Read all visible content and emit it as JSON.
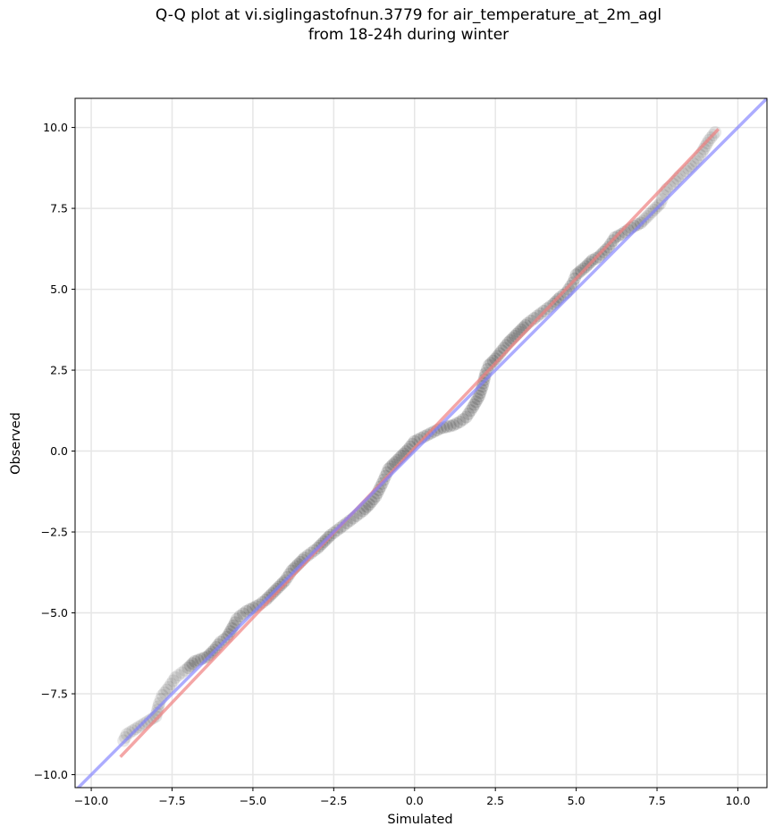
{
  "chart_data": {
    "type": "scatter",
    "title_line1": "Q-Q plot at vi.siglingastofnun.3779 for air_temperature_at_2m_agl",
    "title_line2": "from 18-24h during winter",
    "xlabel": "Simulated",
    "ylabel": "Observed",
    "xlim": [
      -10.5,
      10.9
    ],
    "ylim": [
      -10.4,
      10.9
    ],
    "xticks": [
      -10.0,
      -7.5,
      -5.0,
      -2.5,
      0.0,
      2.5,
      5.0,
      7.5,
      10.0
    ],
    "yticks": [
      -10.0,
      -7.5,
      -5.0,
      -2.5,
      0.0,
      2.5,
      5.0,
      7.5,
      10.0
    ],
    "xtick_labels": [
      "−10.0",
      "−7.5",
      "−5.0",
      "−2.5",
      "0.0",
      "2.5",
      "5.0",
      "7.5",
      "10.0"
    ],
    "ytick_labels": [
      "−10.0",
      "−7.5",
      "−5.0",
      "−2.5",
      "0.0",
      "2.5",
      "5.0",
      "7.5",
      "10.0"
    ],
    "grid": true,
    "series": [
      {
        "kind": "quantiles",
        "color": "#000000",
        "points": [
          [
            -9.0,
            -8.95
          ],
          [
            -8.9,
            -8.75
          ],
          [
            -8.0,
            -8.2
          ],
          [
            -7.9,
            -7.8
          ],
          [
            -7.8,
            -7.55
          ],
          [
            -7.6,
            -7.3
          ],
          [
            -7.4,
            -7.0
          ],
          [
            -7.2,
            -6.85
          ],
          [
            -7.0,
            -6.7
          ],
          [
            -6.8,
            -6.5
          ],
          [
            -6.4,
            -6.35
          ],
          [
            -6.2,
            -6.15
          ],
          [
            -6.0,
            -5.9
          ],
          [
            -5.8,
            -5.75
          ],
          [
            -5.6,
            -5.4
          ],
          [
            -5.5,
            -5.2
          ],
          [
            -5.4,
            -5.1
          ],
          [
            -5.2,
            -4.95
          ],
          [
            -5.0,
            -4.85
          ],
          [
            -4.8,
            -4.75
          ],
          [
            -4.6,
            -4.6
          ],
          [
            -4.4,
            -4.4
          ],
          [
            -4.2,
            -4.2
          ],
          [
            -4.0,
            -4.0
          ],
          [
            -3.8,
            -3.7
          ],
          [
            -3.6,
            -3.5
          ],
          [
            -3.4,
            -3.3
          ],
          [
            -3.2,
            -3.15
          ],
          [
            -3.0,
            -3.0
          ],
          [
            -2.8,
            -2.8
          ],
          [
            -2.6,
            -2.6
          ],
          [
            -2.4,
            -2.45
          ],
          [
            -2.2,
            -2.3
          ],
          [
            -2.0,
            -2.15
          ],
          [
            -1.8,
            -2.0
          ],
          [
            -1.6,
            -1.85
          ],
          [
            -1.4,
            -1.65
          ],
          [
            -1.2,
            -1.4
          ],
          [
            -1.0,
            -1.0
          ],
          [
            -0.8,
            -0.55
          ],
          [
            -0.6,
            -0.35
          ],
          [
            -0.4,
            -0.15
          ],
          [
            -0.2,
            0.05
          ],
          [
            0.0,
            0.3
          ],
          [
            0.2,
            0.4
          ],
          [
            0.4,
            0.5
          ],
          [
            0.6,
            0.6
          ],
          [
            0.8,
            0.7
          ],
          [
            1.0,
            0.75
          ],
          [
            1.2,
            0.8
          ],
          [
            1.4,
            0.9
          ],
          [
            1.6,
            1.05
          ],
          [
            1.8,
            1.35
          ],
          [
            2.0,
            1.7
          ],
          [
            2.1,
            2.0
          ],
          [
            2.2,
            2.4
          ],
          [
            2.3,
            2.65
          ],
          [
            2.5,
            2.85
          ],
          [
            2.7,
            3.1
          ],
          [
            2.9,
            3.35
          ],
          [
            3.1,
            3.55
          ],
          [
            3.3,
            3.75
          ],
          [
            3.5,
            3.95
          ],
          [
            3.7,
            4.1
          ],
          [
            3.9,
            4.25
          ],
          [
            4.1,
            4.4
          ],
          [
            4.3,
            4.55
          ],
          [
            4.5,
            4.75
          ],
          [
            4.7,
            4.9
          ],
          [
            4.9,
            5.2
          ],
          [
            5.0,
            5.45
          ],
          [
            5.3,
            5.7
          ],
          [
            5.5,
            5.9
          ],
          [
            5.7,
            6.0
          ],
          [
            6.0,
            6.3
          ],
          [
            6.2,
            6.6
          ],
          [
            6.4,
            6.7
          ],
          [
            6.7,
            6.9
          ],
          [
            7.0,
            7.05
          ],
          [
            7.2,
            7.25
          ],
          [
            7.4,
            7.45
          ],
          [
            7.6,
            7.65
          ],
          [
            7.7,
            7.9
          ],
          [
            7.8,
            8.1
          ],
          [
            8.0,
            8.25
          ],
          [
            8.2,
            8.5
          ],
          [
            8.4,
            8.65
          ],
          [
            8.7,
            8.95
          ],
          [
            8.9,
            9.25
          ],
          [
            9.1,
            9.6
          ],
          [
            9.3,
            9.85
          ]
        ]
      },
      {
        "kind": "fit-line",
        "color": "#f08080",
        "x": [
          -9.1,
          9.4
        ],
        "y": [
          -9.45,
          9.95
        ]
      },
      {
        "kind": "identity-line",
        "color": "#8080ff",
        "x": [
          -10.5,
          10.9
        ],
        "y": [
          -10.5,
          10.9
        ]
      }
    ]
  }
}
